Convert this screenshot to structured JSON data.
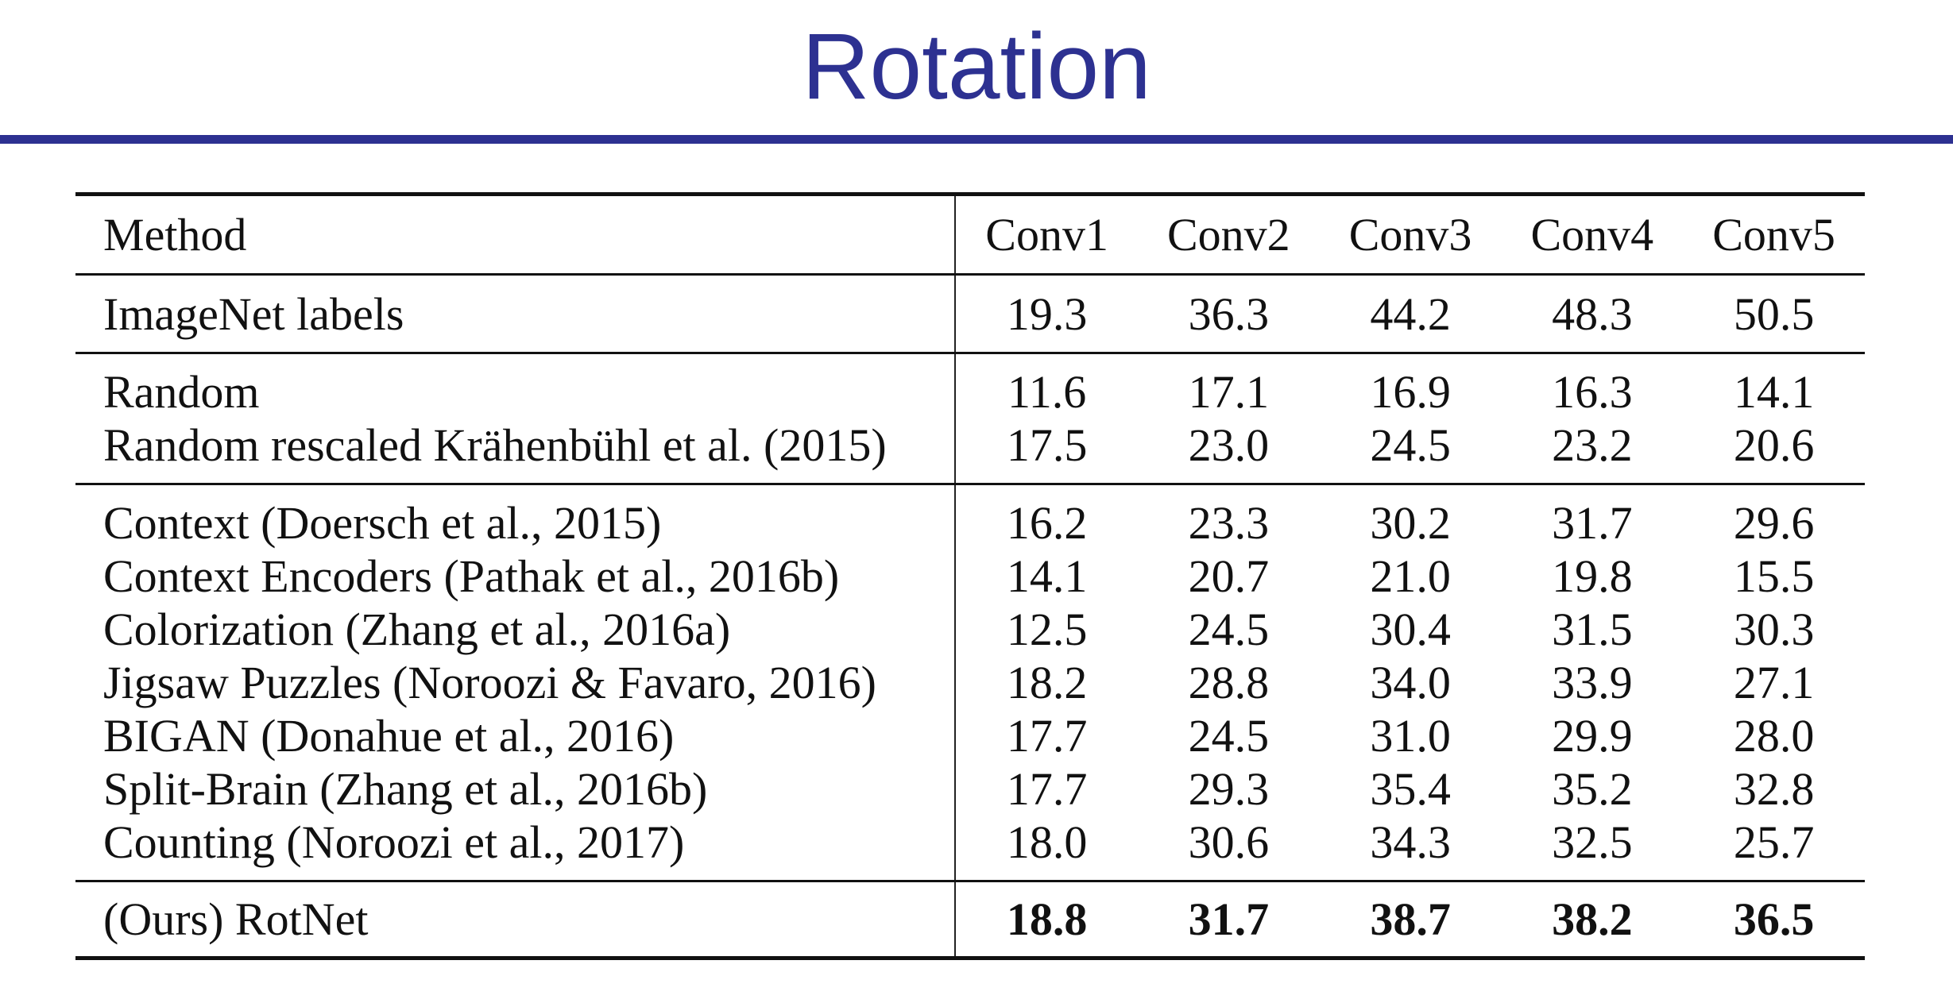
{
  "slide": {
    "title": "Rotation"
  },
  "table": {
    "headers": [
      "Method",
      "Conv1",
      "Conv2",
      "Conv3",
      "Conv4",
      "Conv5"
    ],
    "groups": [
      {
        "rows": [
          {
            "method": "ImageNet labels",
            "values": [
              "19.3",
              "36.3",
              "44.2",
              "48.3",
              "50.5"
            ]
          }
        ]
      },
      {
        "rows": [
          {
            "method": "Random",
            "values": [
              "11.6",
              "17.1",
              "16.9",
              "16.3",
              "14.1"
            ]
          },
          {
            "method": "Random rescaled Krähenbühl et al. (2015)",
            "values": [
              "17.5",
              "23.0",
              "24.5",
              "23.2",
              "20.6"
            ]
          }
        ]
      },
      {
        "rows": [
          {
            "method": "Context (Doersch et al., 2015)",
            "values": [
              "16.2",
              "23.3",
              "30.2",
              "31.7",
              "29.6"
            ]
          },
          {
            "method": "Context Encoders (Pathak et al., 2016b)",
            "values": [
              "14.1",
              "20.7",
              "21.0",
              "19.8",
              "15.5"
            ]
          },
          {
            "method": "Colorization (Zhang et al., 2016a)",
            "values": [
              "12.5",
              "24.5",
              "30.4",
              "31.5",
              "30.3"
            ]
          },
          {
            "method": "Jigsaw Puzzles (Noroozi & Favaro, 2016)",
            "values": [
              "18.2",
              "28.8",
              "34.0",
              "33.9",
              "27.1"
            ]
          },
          {
            "method": "BIGAN (Donahue et al., 2016)",
            "values": [
              "17.7",
              "24.5",
              "31.0",
              "29.9",
              "28.0"
            ]
          },
          {
            "method": "Split-Brain (Zhang et al., 2016b)",
            "values": [
              "17.7",
              "29.3",
              "35.4",
              "35.2",
              "32.8"
            ]
          },
          {
            "method": "Counting (Noroozi et al., 2017)",
            "values": [
              "18.0",
              "30.6",
              "34.3",
              "32.5",
              "25.7"
            ]
          }
        ]
      },
      {
        "bold_values": true,
        "rows": [
          {
            "method": "(Ours) RotNet",
            "values": [
              "18.8",
              "31.7",
              "38.7",
              "38.2",
              "36.5"
            ]
          }
        ]
      }
    ]
  }
}
